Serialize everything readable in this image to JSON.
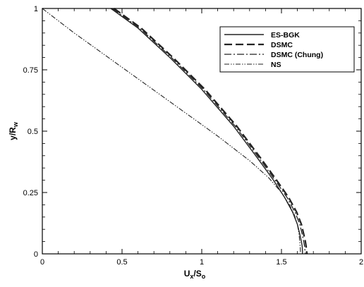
{
  "chart_data": {
    "type": "line",
    "title": "",
    "xlabel": "U",
    "xlabel_sub": "x",
    "xlabel_mid": "/S",
    "xlabel_sub2": "o",
    "ylabel": "y/R",
    "ylabel_sub": "w",
    "xlim": [
      0,
      2
    ],
    "ylim": [
      0,
      1
    ],
    "xticks": [
      "0",
      "0.5",
      "1",
      "1.5",
      "2"
    ],
    "yticks": [
      "0",
      "0.25",
      "0.5",
      "0.75",
      "1"
    ],
    "grid": false,
    "legend_position": "top-right",
    "series": [
      {
        "name": "ES-BGK",
        "style": "solid",
        "x": [
          0.43,
          0.6,
          0.8,
          1.0,
          1.2,
          1.35,
          1.45,
          1.52,
          1.57,
          1.6,
          1.615,
          1.625,
          1.63,
          1.632,
          1.632
        ],
        "y": [
          1.0,
          0.92,
          0.8,
          0.67,
          0.52,
          0.39,
          0.3,
          0.23,
          0.17,
          0.12,
          0.08,
          0.05,
          0.03,
          0.01,
          0.0
        ]
      },
      {
        "name": "DSMC",
        "style": "dashed",
        "x": [
          0.45,
          0.62,
          0.82,
          1.02,
          1.22,
          1.37,
          1.47,
          1.545,
          1.595,
          1.625,
          1.64,
          1.65,
          1.655,
          1.658,
          1.66
        ],
        "y": [
          1.0,
          0.92,
          0.8,
          0.67,
          0.52,
          0.39,
          0.3,
          0.23,
          0.17,
          0.12,
          0.08,
          0.05,
          0.03,
          0.01,
          0.0
        ]
      },
      {
        "name": "DSMC (Chung)",
        "style": "dashdot",
        "x": [
          0.44,
          0.61,
          0.81,
          1.01,
          1.21,
          1.36,
          1.46,
          1.535,
          1.585,
          1.615,
          1.63,
          1.64,
          1.645,
          1.648,
          1.65
        ],
        "y": [
          1.0,
          0.92,
          0.8,
          0.67,
          0.52,
          0.39,
          0.3,
          0.23,
          0.17,
          0.12,
          0.08,
          0.05,
          0.03,
          0.01,
          0.0
        ]
      },
      {
        "name": "NS",
        "style": "dashdotdot",
        "x": [
          0.0,
          0.2,
          0.5,
          0.8,
          1.1,
          1.3,
          1.42,
          1.5,
          1.55,
          1.58,
          1.6,
          1.61,
          1.615,
          1.618,
          1.62
        ],
        "y": [
          1.0,
          0.9,
          0.76,
          0.62,
          0.48,
          0.38,
          0.31,
          0.25,
          0.2,
          0.16,
          0.12,
          0.08,
          0.05,
          0.02,
          0.0
        ]
      }
    ]
  }
}
